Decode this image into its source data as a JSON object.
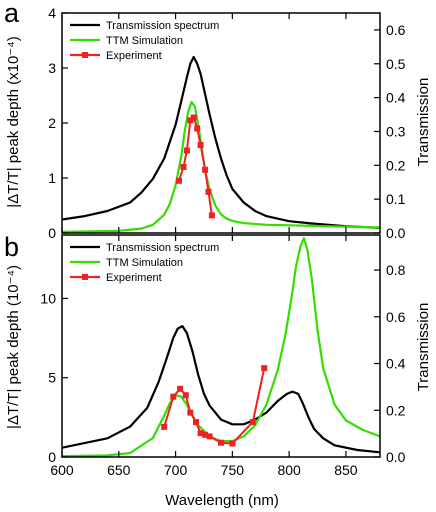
{
  "chart_data": [
    {
      "panel_label": "a",
      "type": "line",
      "ylabel": "|ΔT/T| peak depth (x10⁻⁴)",
      "y2label": "Transmission",
      "xlim": [
        600,
        880
      ],
      "ylim": [
        0,
        4
      ],
      "y2lim": [
        0,
        0.65
      ],
      "yticks": [
        "0",
        "1",
        "2",
        "3",
        "4"
      ],
      "y2ticks": [
        "0.0",
        "0.1",
        "0.2",
        "0.3",
        "0.4",
        "0.5",
        "0.6"
      ],
      "legend_position": "top-left",
      "series": [
        {
          "name": "Transmission spectrum",
          "axis": "right",
          "color": "#000000",
          "x": [
            600,
            620,
            640,
            660,
            670,
            680,
            690,
            695,
            700,
            705,
            710,
            713,
            716,
            719,
            722,
            726,
            730,
            735,
            740,
            745,
            750,
            760,
            770,
            780,
            800,
            820,
            850,
            880
          ],
          "y": [
            0.04,
            0.05,
            0.065,
            0.09,
            0.12,
            0.16,
            0.22,
            0.27,
            0.32,
            0.39,
            0.46,
            0.5,
            0.52,
            0.5,
            0.47,
            0.41,
            0.35,
            0.28,
            0.22,
            0.17,
            0.13,
            0.09,
            0.065,
            0.05,
            0.035,
            0.028,
            0.02,
            0.015
          ]
        },
        {
          "name": "TTM Simulation",
          "axis": "left",
          "color": "#33dd00",
          "x": [
            600,
            650,
            670,
            680,
            690,
            695,
            700,
            705,
            708,
            711,
            714,
            717,
            720,
            723,
            726,
            730,
            735,
            740,
            745,
            750,
            760,
            780,
            820,
            880
          ],
          "y": [
            0.02,
            0.04,
            0.08,
            0.15,
            0.33,
            0.53,
            0.87,
            1.4,
            1.85,
            2.2,
            2.38,
            2.3,
            1.95,
            1.55,
            1.15,
            0.78,
            0.5,
            0.34,
            0.26,
            0.22,
            0.18,
            0.15,
            0.13,
            0.1
          ]
        },
        {
          "name": "Experiment",
          "axis": "left",
          "color": "#ee2222",
          "x": [
            703,
            707,
            710,
            713,
            716,
            719,
            722,
            726,
            729,
            732
          ],
          "y": [
            0.95,
            1.2,
            1.5,
            2.05,
            2.1,
            1.9,
            1.6,
            1.15,
            0.75,
            0.32
          ]
        }
      ]
    },
    {
      "panel_label": "b",
      "type": "line",
      "xlabel": "Wavelength (nm)",
      "ylabel": "|ΔT/T| peak depth (10⁻⁴)",
      "y2label": "Transmission",
      "xlim": [
        600,
        880
      ],
      "xticks": [
        "600",
        "650",
        "700",
        "750",
        "800",
        "850"
      ],
      "ylim": [
        0,
        14
      ],
      "y2lim": [
        0,
        0.95
      ],
      "yticks": [
        "0",
        "5",
        "10"
      ],
      "y2ticks": [
        "0.0",
        "0.2",
        "0.4",
        "0.6",
        "0.8"
      ],
      "legend_position": "top-left",
      "series": [
        {
          "name": "Transmission spectrum",
          "axis": "right",
          "color": "#000000",
          "x": [
            600,
            640,
            660,
            675,
            685,
            692,
            698,
            702,
            706,
            710,
            715,
            720,
            725,
            730,
            740,
            750,
            760,
            770,
            780,
            790,
            798,
            803,
            808,
            812,
            817,
            822,
            830,
            840,
            860,
            880
          ],
          "y": [
            0.04,
            0.08,
            0.13,
            0.21,
            0.32,
            0.42,
            0.51,
            0.55,
            0.56,
            0.53,
            0.45,
            0.35,
            0.27,
            0.22,
            0.16,
            0.14,
            0.14,
            0.16,
            0.19,
            0.24,
            0.27,
            0.28,
            0.27,
            0.23,
            0.17,
            0.12,
            0.08,
            0.05,
            0.03,
            0.02
          ]
        },
        {
          "name": "TTM Simulation",
          "axis": "left",
          "color": "#33dd00",
          "x": [
            600,
            640,
            660,
            680,
            690,
            695,
            700,
            705,
            710,
            715,
            720,
            730,
            740,
            750,
            760,
            770,
            780,
            790,
            797,
            802,
            806,
            810,
            813,
            816,
            820,
            825,
            830,
            840,
            850,
            865,
            880
          ],
          "y": [
            0.05,
            0.1,
            0.25,
            1.2,
            2.6,
            3.4,
            3.9,
            3.8,
            3.3,
            2.6,
            2.0,
            1.3,
            1.0,
            1.0,
            1.3,
            2.0,
            3.3,
            5.5,
            7.8,
            10.0,
            12.0,
            13.3,
            13.8,
            13.1,
            11.2,
            8.0,
            5.6,
            3.3,
            2.3,
            1.7,
            1.3
          ]
        },
        {
          "name": "Experiment",
          "axis": "left",
          "color": "#ee2222",
          "x": [
            690,
            698,
            704,
            709,
            713,
            718,
            722,
            726,
            730,
            740,
            750,
            768,
            778
          ],
          "y": [
            1.9,
            3.8,
            4.3,
            3.9,
            2.8,
            2.2,
            1.5,
            1.4,
            1.3,
            0.9,
            0.85,
            2.2,
            5.6
          ]
        }
      ]
    }
  ]
}
